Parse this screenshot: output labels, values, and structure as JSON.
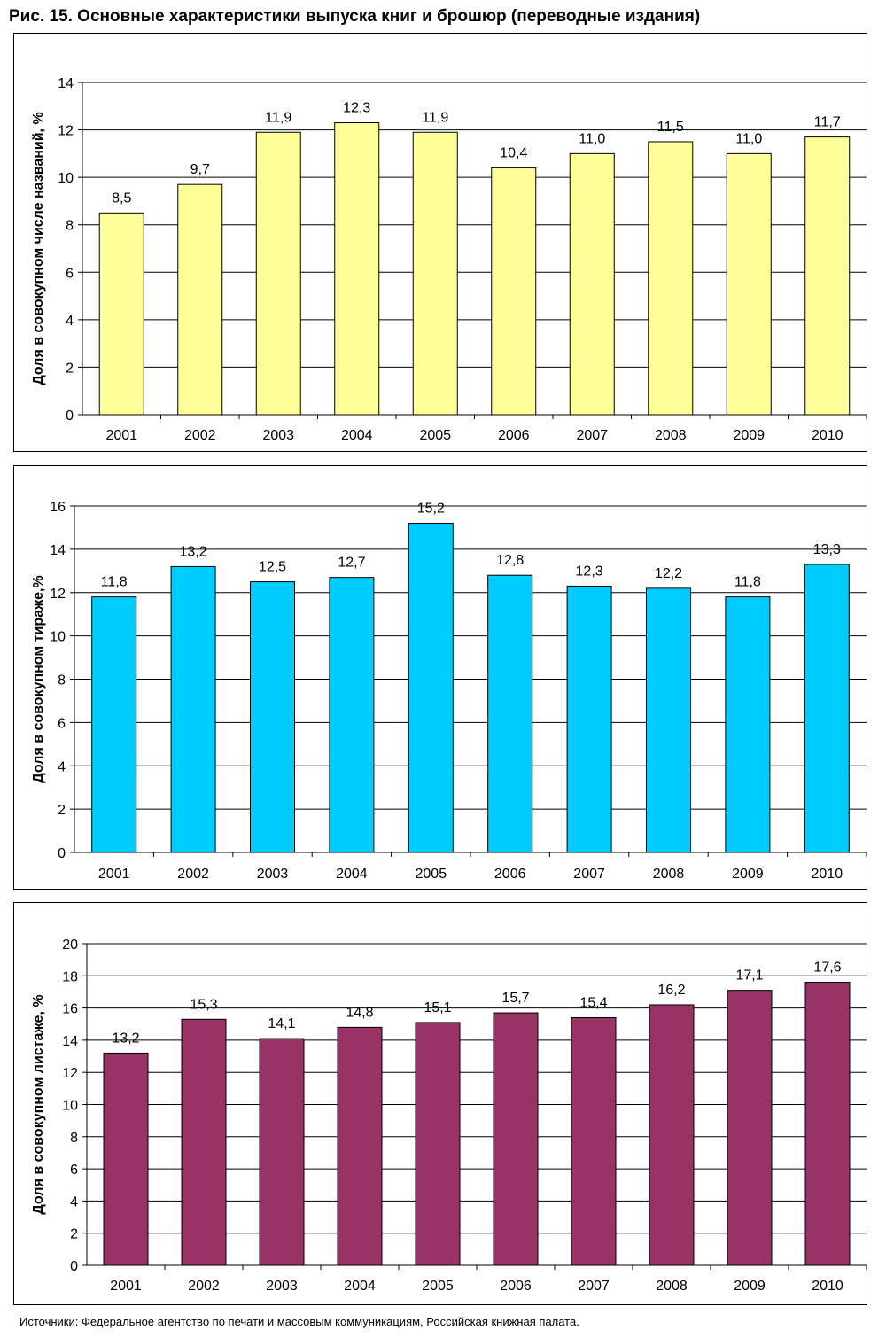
{
  "figure_title": "Рис. 15. Основные характеристики выпуска книг и брошюр (переводные издания)",
  "source_note": "Источники: Федеральное агентство по печати и массовым коммуникациям, Российская книжная палата.",
  "colors": {
    "bar1": "#ffff99",
    "bar2": "#00ccff",
    "bar3": "#993366",
    "border": "#000000",
    "grid": "#000000"
  },
  "chart_data": [
    {
      "type": "bar",
      "title": "",
      "xlabel": "",
      "ylabel": "Доля в совокупном числе названий, %",
      "categories": [
        "2001",
        "2002",
        "2003",
        "2004",
        "2005",
        "2006",
        "2007",
        "2008",
        "2009",
        "2010"
      ],
      "values": [
        8.5,
        9.7,
        11.9,
        12.3,
        11.9,
        10.4,
        11.0,
        11.5,
        11.0,
        11.7
      ],
      "value_labels": [
        "8,5",
        "9,7",
        "11,9",
        "12,3",
        "11,9",
        "10,4",
        "11,0",
        "11,5",
        "11,0",
        "11,7"
      ],
      "ylim": [
        0,
        14
      ],
      "yticks": [
        0,
        2,
        4,
        6,
        8,
        10,
        12,
        14
      ],
      "grid": true,
      "legend": "none"
    },
    {
      "type": "bar",
      "title": "",
      "xlabel": "",
      "ylabel": "Доля в совокупном тираже,%",
      "categories": [
        "2001",
        "2002",
        "2003",
        "2004",
        "2005",
        "2006",
        "2007",
        "2008",
        "2009",
        "2010"
      ],
      "values": [
        11.8,
        13.2,
        12.5,
        12.7,
        15.2,
        12.8,
        12.3,
        12.2,
        11.8,
        13.3
      ],
      "value_labels": [
        "11,8",
        "13,2",
        "12,5",
        "12,7",
        "15,2",
        "12,8",
        "12,3",
        "12,2",
        "11,8",
        "13,3"
      ],
      "ylim": [
        0,
        16
      ],
      "yticks": [
        0,
        2,
        4,
        6,
        8,
        10,
        12,
        14,
        16
      ],
      "grid": true,
      "legend": "none"
    },
    {
      "type": "bar",
      "title": "",
      "xlabel": "",
      "ylabel": "Доля в совокупном листаже, %",
      "categories": [
        "2001",
        "2002",
        "2003",
        "2004",
        "2005",
        "2006",
        "2007",
        "2008",
        "2009",
        "2010"
      ],
      "values": [
        13.2,
        15.3,
        14.1,
        14.8,
        15.1,
        15.7,
        15.4,
        16.2,
        17.1,
        17.6
      ],
      "value_labels": [
        "13,2",
        "15,3",
        "14,1",
        "14,8",
        "15,1",
        "15,7",
        "15,4",
        "16,2",
        "17,1",
        "17,6"
      ],
      "ylim": [
        0,
        20
      ],
      "yticks": [
        0,
        2,
        4,
        6,
        8,
        10,
        12,
        14,
        16,
        18,
        20
      ],
      "grid": true,
      "legend": "none"
    }
  ]
}
